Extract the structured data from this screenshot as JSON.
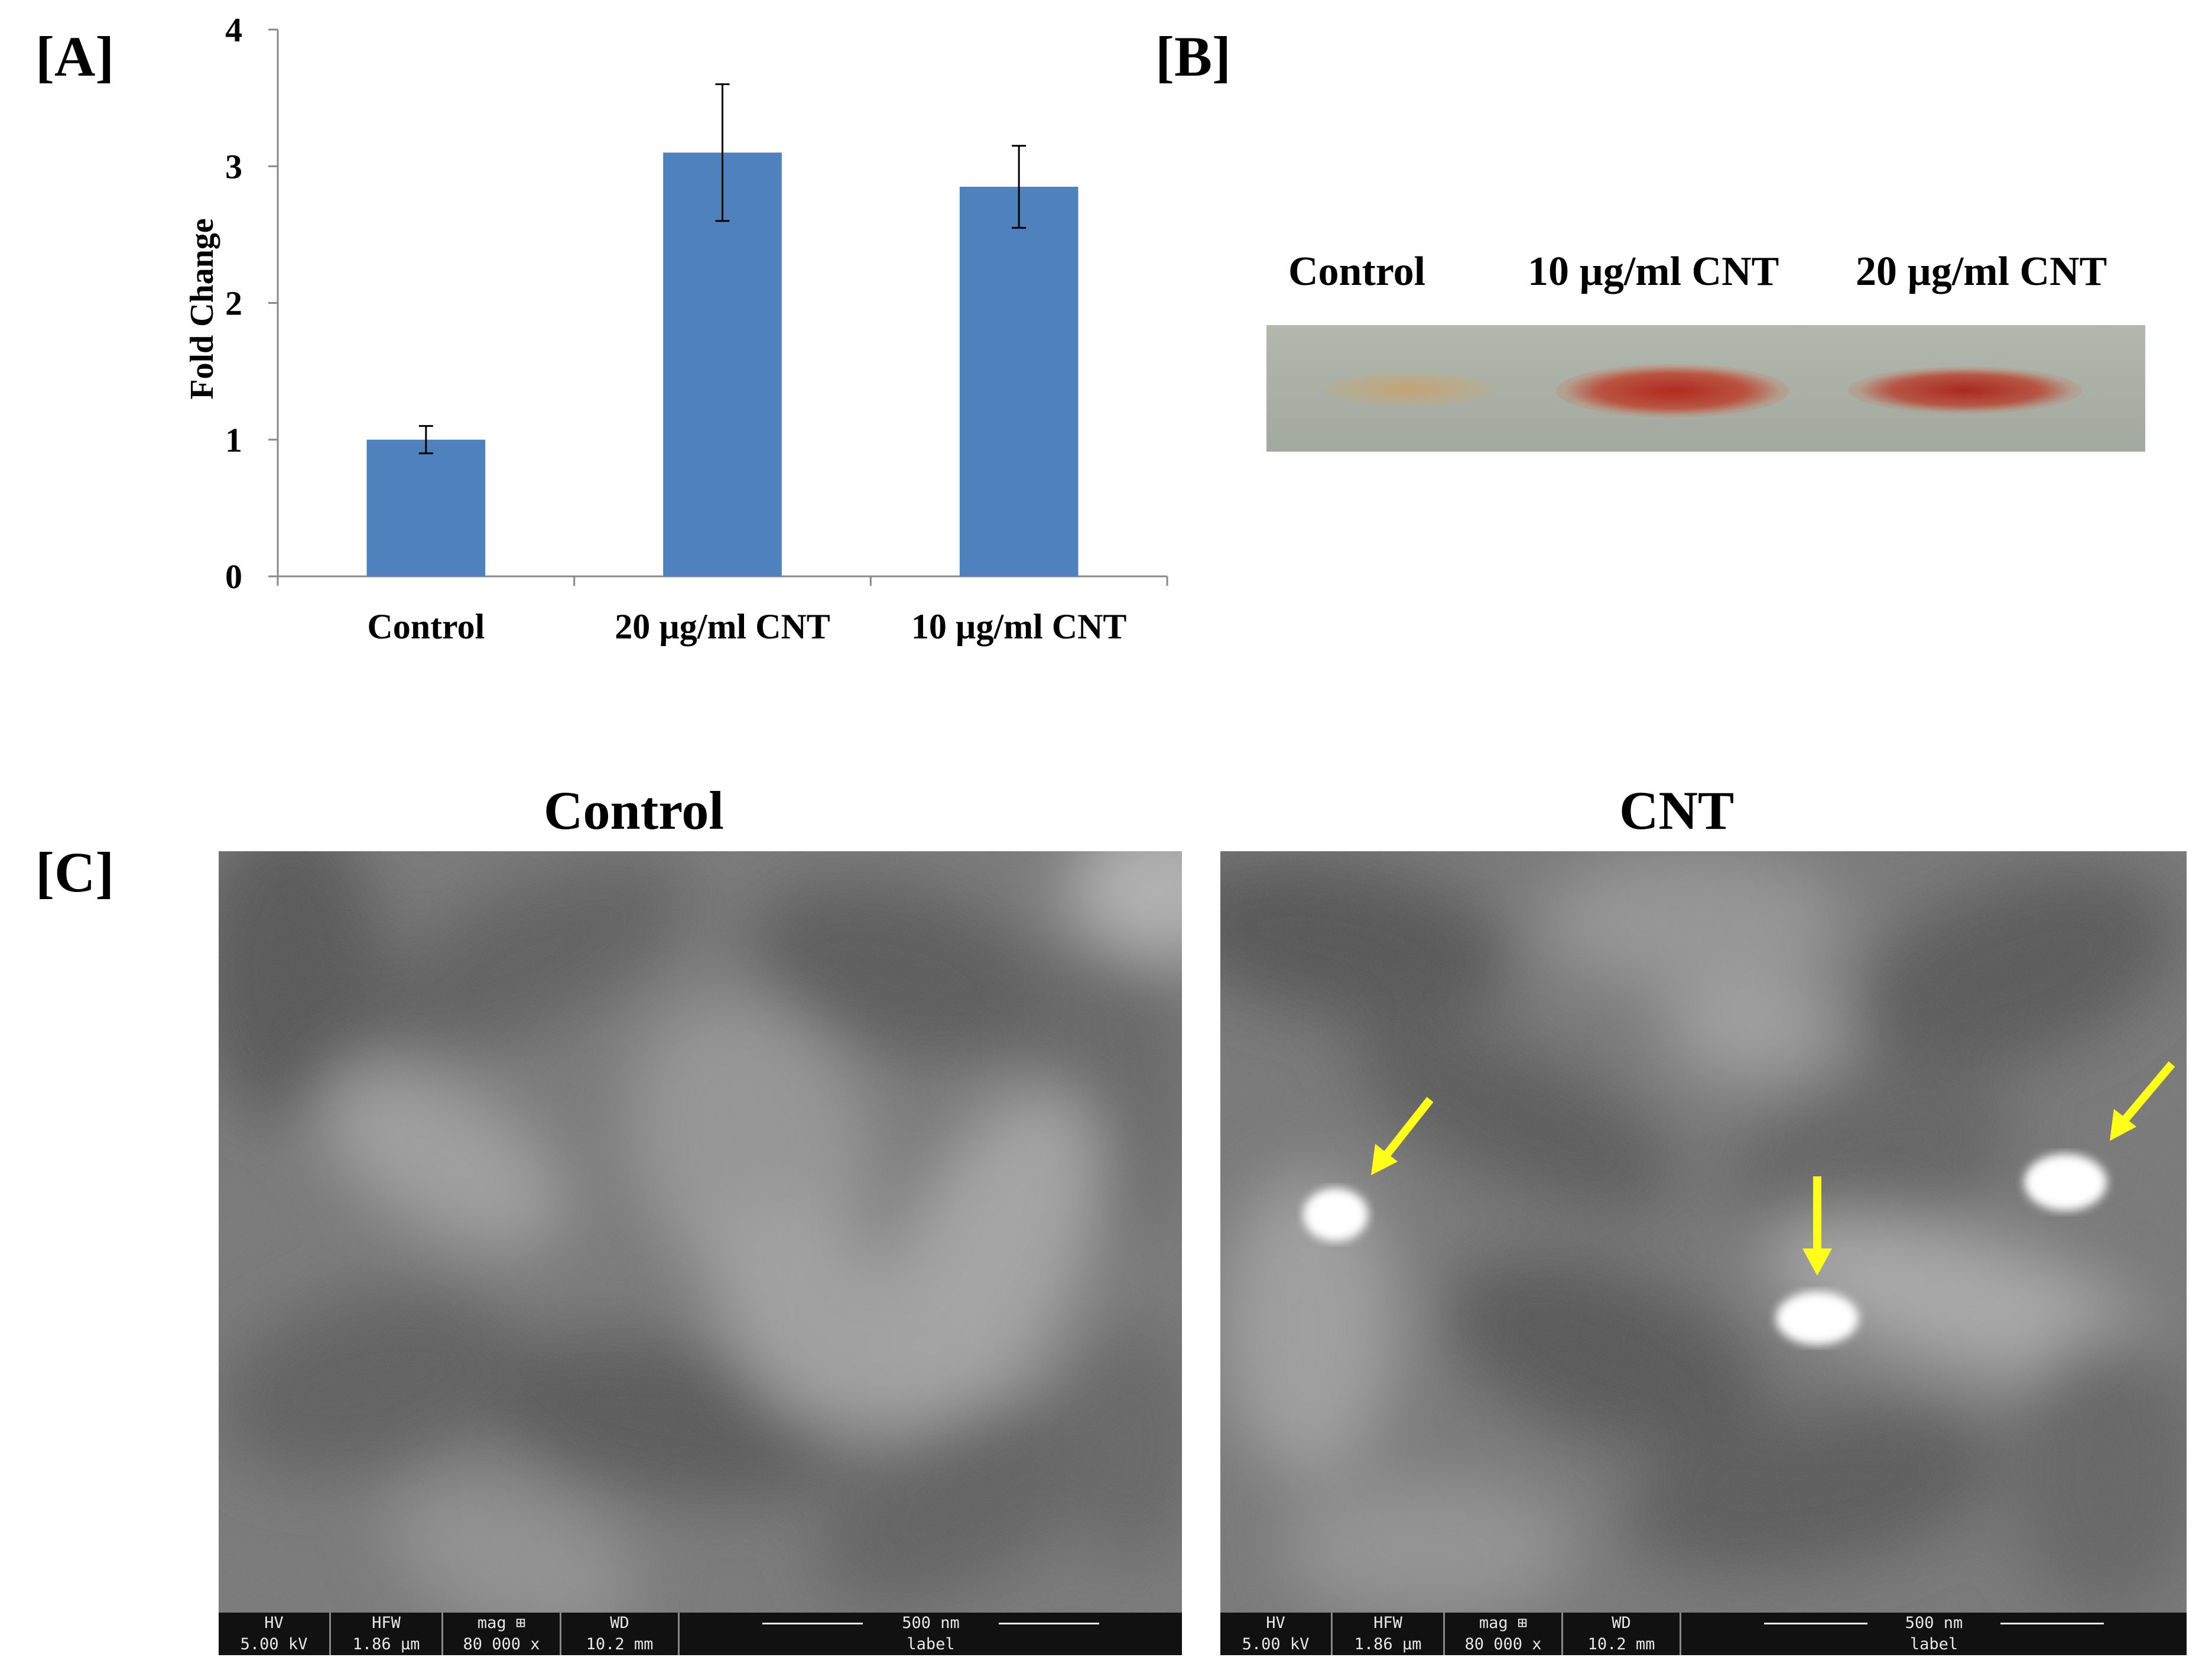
{
  "panel_labels": {
    "a": "[A]",
    "b": "[B]",
    "c": "[C]"
  },
  "chart_data": {
    "type": "bar",
    "categories": [
      "Control",
      "20 µg/ml CNT",
      "10 µg/ml CNT"
    ],
    "values": [
      1.0,
      3.1,
      2.85
    ],
    "error": [
      0.1,
      0.5,
      0.3
    ],
    "ylabel": "Fold Change",
    "ylim": [
      0,
      4
    ],
    "yticks": [
      "0",
      "1",
      "2",
      "3",
      "4"
    ],
    "bar_color": "#4f81bd",
    "grid": false
  },
  "blot": {
    "lanes": [
      "Control",
      "10 µg/ml CNT",
      "20 µg/ml CNT"
    ],
    "band_color": "#b02418"
  },
  "sem": {
    "control": {
      "title": "Control",
      "databar": {
        "hv_label": "HV",
        "hv": "5.00 kV",
        "hfw_label": "HFW",
        "hfw": "1.86 µm",
        "mag_label": "mag ⊞",
        "mag": "80 000 x",
        "wd_label": "WD",
        "wd": "10.2 mm",
        "scale": "500 nm",
        "footer": "label"
      }
    },
    "cnt": {
      "title": "CNT",
      "databar": {
        "hv_label": "HV",
        "hv": "5.00 kV",
        "hfw_label": "HFW",
        "hfw": "1.86 µm",
        "mag_label": "mag ⊞",
        "mag": "80 000 x",
        "wd_label": "WD",
        "wd": "10.2 mm",
        "scale": "500 nm",
        "footer": "label"
      },
      "arrow_color": "#ffff1a"
    }
  }
}
